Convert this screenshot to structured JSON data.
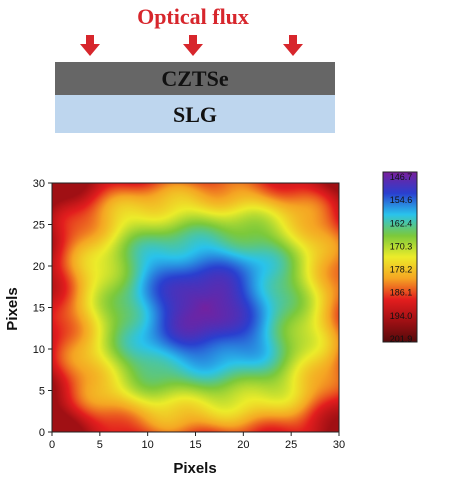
{
  "schematic": {
    "flux_label": "Optical flux",
    "flux_color": "#d7262c",
    "arrow_count": 3,
    "layers": [
      {
        "label": "CZTSe",
        "color": "#666666"
      },
      {
        "label": "SLG",
        "color": "#bed6ee"
      }
    ]
  },
  "chart_data": {
    "type": "heatmap",
    "xlabel": "Pixels",
    "ylabel": "Pixels",
    "xlim": [
      0,
      30
    ],
    "ylim": [
      0,
      30
    ],
    "x_ticks": [
      "0",
      "5",
      "10",
      "15",
      "20",
      "25",
      "30"
    ],
    "y_ticks": [
      "0",
      "5",
      "10",
      "15",
      "20",
      "25",
      "30"
    ],
    "min_value": 146.7,
    "max_value": 201.9,
    "min_location": [
      16,
      15
    ],
    "colorbar": {
      "labels": [
        "146.7",
        "154.6",
        "162.4",
        "170.3",
        "178.2",
        "186.1",
        "194.0",
        "201.9"
      ],
      "colors": [
        "#7a1f9c",
        "#2a3fcf",
        "#29c3ec",
        "#7cc93b",
        "#ecec2a",
        "#f5a623",
        "#e31e1e",
        "#a01014",
        "#550a0b"
      ]
    }
  }
}
